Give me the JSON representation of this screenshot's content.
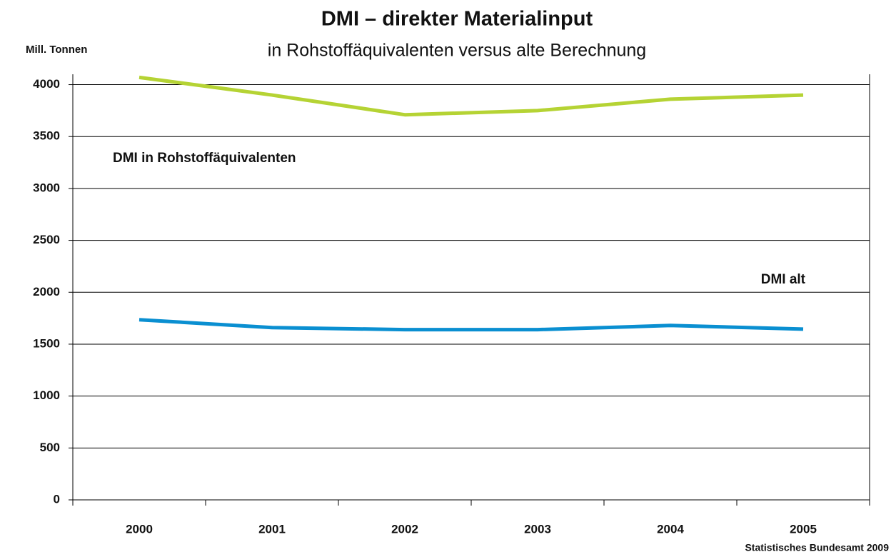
{
  "chart_data": {
    "type": "line",
    "title": "DMI – direkter Materialinput",
    "subtitle": "in Rohstoffäquivalenten versus alte Berechnung",
    "y_label": "Mill. Tonnen",
    "source": "Statistisches Bundesamt 2009",
    "categories": [
      "2000",
      "2001",
      "2002",
      "2003",
      "2004",
      "2005"
    ],
    "series": [
      {
        "name": "DMI in Rohstoffäquivalenten",
        "color": "#b5d334",
        "values": [
          4070,
          3900,
          3710,
          3750,
          3860,
          3900
        ]
      },
      {
        "name": "DMI alt",
        "color": "#0a8fd1",
        "values": [
          1735,
          1660,
          1640,
          1640,
          1680,
          1645
        ]
      }
    ],
    "ylim": [
      0,
      4100
    ],
    "yticks": [
      0,
      500,
      1000,
      1500,
      2000,
      2500,
      3000,
      3500,
      4000
    ],
    "grid": true
  }
}
